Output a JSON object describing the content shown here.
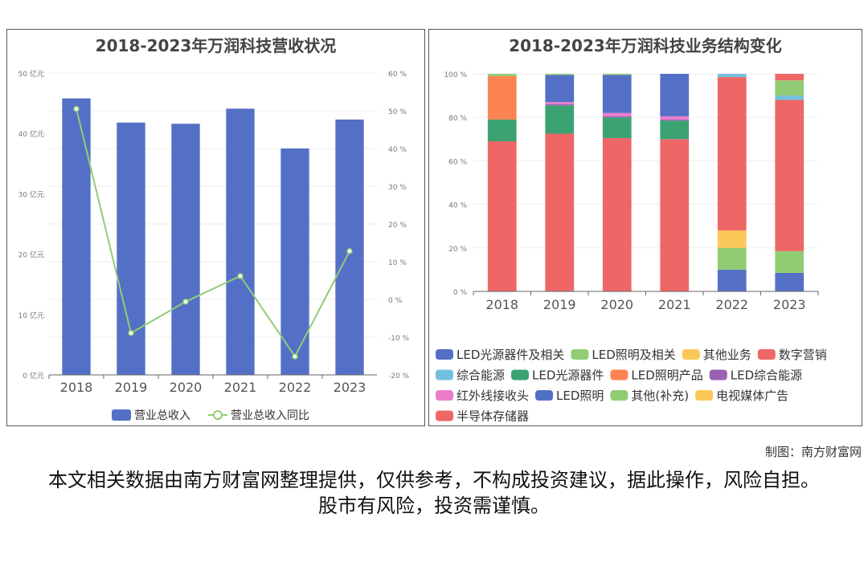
{
  "credit": "制图：南方财富网",
  "disclaimer": "本文相关数据由南方财富网整理提供，仅供参考，不构成投资建议，据此操作，风险自担。股市有风险，投资需谨慎。",
  "chart_data": [
    {
      "type": "bar",
      "title": "2018-2023年万润科技营收状况",
      "categories": [
        "2018",
        "2019",
        "2020",
        "2021",
        "2022",
        "2023"
      ],
      "series": [
        {
          "name": "营业总收入",
          "type": "bar",
          "color": "#5470c6",
          "values": [
            45.8,
            41.8,
            41.6,
            44.1,
            37.5,
            42.3
          ]
        },
        {
          "name": "营业总收入同比",
          "type": "line",
          "color": "#91cc75",
          "values": [
            50.5,
            -8.9,
            -0.6,
            6.2,
            -15.1,
            12.8
          ]
        }
      ],
      "ylim": [
        0,
        50
      ],
      "y_ticks": [
        "0 亿元",
        "10 亿元",
        "20 亿元",
        "30 亿元",
        "40 亿元",
        "50 亿元"
      ],
      "y2lim": [
        -20,
        60
      ],
      "y2_ticks": [
        "-20 %",
        "-10 %",
        "0 %",
        "10 %",
        "20 %",
        "30 %",
        "40 %",
        "50 %",
        "60 %"
      ],
      "legend": "bottom"
    },
    {
      "type": "bar",
      "stacked": true,
      "title": "2018-2023年万润科技业务结构变化",
      "categories": [
        "2018",
        "2019",
        "2020",
        "2021",
        "2022",
        "2023"
      ],
      "ylim": [
        0,
        100
      ],
      "y_ticks": [
        "0 %",
        "20 %",
        "40 %",
        "60 %",
        "80 %",
        "100 %"
      ],
      "legend": "bottom",
      "series": [
        {
          "name": "LED光源器件及相关",
          "color": "#5470c6",
          "values": [
            0,
            0,
            0,
            0,
            10,
            8.5
          ]
        },
        {
          "name": "LED照明及相关",
          "color": "#91cc75",
          "values": [
            0,
            0,
            0,
            0,
            10,
            10
          ]
        },
        {
          "name": "其他业务",
          "color": "#fac858",
          "values": [
            0,
            0,
            0,
            0,
            8,
            0
          ]
        },
        {
          "name": "数字营销",
          "color": "#ee6666",
          "values": [
            69,
            72.5,
            70.5,
            70,
            70.5,
            69.5
          ]
        },
        {
          "name": "综合能源",
          "color": "#73c0de",
          "values": [
            0,
            0,
            0,
            0,
            1.5,
            2
          ]
        },
        {
          "name": "LED光源器件",
          "color": "#3ba272",
          "values": [
            10,
            13,
            9.5,
            8.5,
            0,
            0
          ]
        },
        {
          "name": "LED照明产品",
          "color": "#fc8452",
          "values": [
            20,
            0,
            0,
            0,
            0,
            0
          ]
        },
        {
          "name": "LED综合能源",
          "color": "#9a60b4",
          "values": [
            0,
            0.5,
            0.5,
            0.5,
            0,
            0
          ]
        },
        {
          "name": "红外线接收头",
          "color": "#ea7ccc",
          "values": [
            0,
            1,
            1.5,
            1.5,
            0,
            0
          ]
        },
        {
          "name": "LED照明",
          "color": "#5470c6",
          "values": [
            0,
            12.5,
            17.5,
            19.5,
            0,
            0
          ]
        },
        {
          "name": "其他(补充)",
          "color": "#91cc75",
          "values": [
            1,
            0.5,
            0.5,
            0,
            0,
            7
          ]
        },
        {
          "name": "电视媒体广告",
          "color": "#fac858",
          "values": [
            0,
            0,
            0,
            0,
            0,
            0
          ]
        },
        {
          "name": "半导体存储器",
          "color": "#ee6666",
          "values": [
            0,
            0,
            0,
            0,
            0,
            3
          ]
        }
      ]
    }
  ]
}
